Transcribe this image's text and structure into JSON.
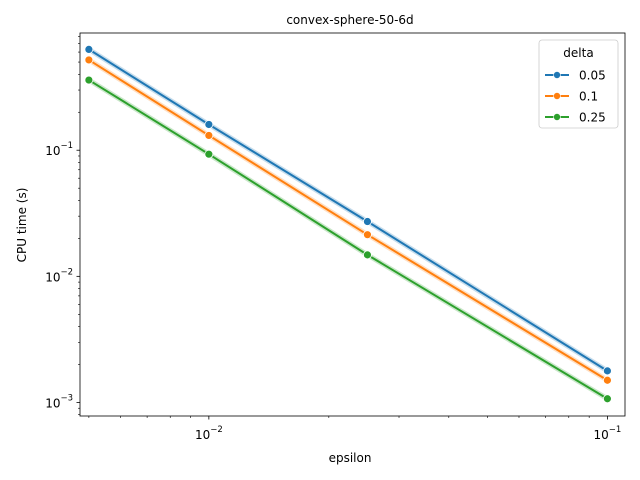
{
  "chart_data": {
    "type": "line",
    "title": "convex-sphere-50-6d",
    "xlabel": "epsilon",
    "ylabel": "CPU time (s)",
    "xscale": "log",
    "yscale": "log",
    "xlim": [
      0.00475,
      0.1107
    ],
    "ylim": [
      0.000781,
      0.85
    ],
    "x_ticks": [
      {
        "value": 0.01,
        "base": "10",
        "exp": "−2"
      },
      {
        "value": 0.1,
        "base": "10",
        "exp": "−1"
      }
    ],
    "y_ticks": [
      {
        "value": 0.001,
        "base": "10",
        "exp": "−3"
      },
      {
        "value": 0.01,
        "base": "10",
        "exp": "−2"
      },
      {
        "value": 0.1,
        "base": "10",
        "exp": "−1"
      }
    ],
    "grid": false,
    "legend": {
      "title": "delta",
      "placement": "top-right"
    },
    "x": [
      0.005,
      0.01,
      0.025,
      0.1
    ],
    "series": [
      {
        "name": "0.05",
        "color": "#1f77b4",
        "values": [
          0.63,
          0.16,
          0.0272,
          0.00178
        ]
      },
      {
        "name": "0.1",
        "color": "#ff7f0e",
        "values": [
          0.52,
          0.131,
          0.0214,
          0.0015
        ]
      },
      {
        "name": "0.25",
        "color": "#2ca02c",
        "values": [
          0.36,
          0.093,
          0.0148,
          0.00107
        ]
      }
    ]
  }
}
